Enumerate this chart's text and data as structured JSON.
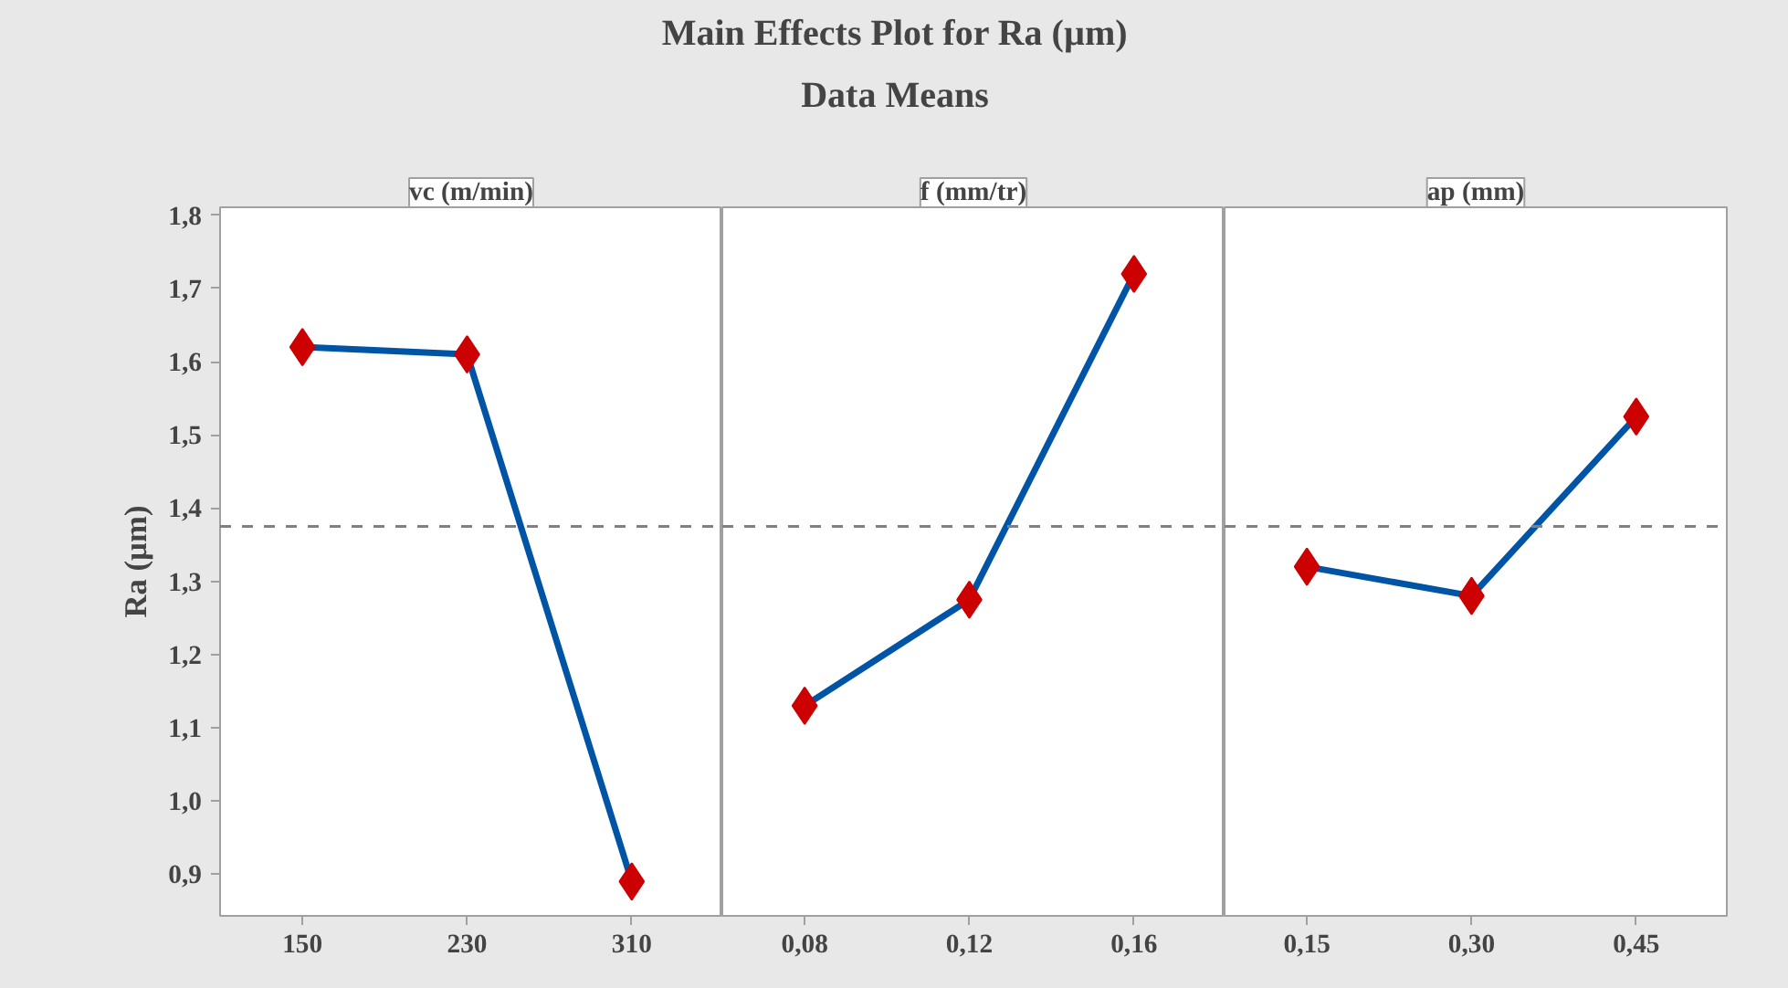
{
  "chart_data": [
    {
      "type": "other",
      "title": "Main Effects Plot for Ra (µm)",
      "subtitle": "Data Means"
    },
    {
      "type": "line",
      "title": "vc (m/min)",
      "ylabel": "Ra (µm)",
      "categories": [
        "150",
        "230",
        "310"
      ],
      "values": [
        1.62,
        1.61,
        0.89
      ],
      "color": "#0054a6",
      "colors": [
        "#cc0000",
        "#cc0000",
        "#cc0000"
      ],
      "marker": "diamond",
      "ylim": [
        0.843,
        1.811
      ],
      "yticks": [
        {
          "value": 0.9,
          "label": "0,9"
        },
        {
          "value": 1.0,
          "label": "1,0"
        },
        {
          "value": 1.1,
          "label": "1,1"
        },
        {
          "value": 1.2,
          "label": "1,2"
        },
        {
          "value": 1.3,
          "label": "1,3"
        },
        {
          "value": 1.4,
          "label": "1,4"
        },
        {
          "value": 1.5,
          "label": "1,5"
        },
        {
          "value": 1.6,
          "label": "1,6"
        },
        {
          "value": 1.7,
          "label": "1,7"
        },
        {
          "value": 1.8,
          "label": "1,8"
        }
      ],
      "ref_lines": [
        {
          "axis": "y",
          "value": 1.375,
          "color": "#808080",
          "line_style": "dashed"
        }
      ]
    },
    {
      "type": "line",
      "title": "f (mm/tr)",
      "categories": [
        "0,08",
        "0,12",
        "0,16"
      ],
      "values": [
        1.13,
        1.275,
        1.72
      ],
      "color": "#0054a6",
      "colors": [
        "#cc0000",
        "#cc0000",
        "#cc0000"
      ],
      "marker": "diamond",
      "ylim": [
        0.843,
        1.811
      ],
      "tick_labels": "x",
      "ref_lines": [
        {
          "axis": "y",
          "value": 1.375,
          "color": "#808080",
          "line_style": "dashed"
        }
      ]
    },
    {
      "type": "line",
      "title": "ap (mm)",
      "categories": [
        "0,15",
        "0,30",
        "0,45"
      ],
      "values": [
        1.32,
        1.28,
        1.525
      ],
      "color": "#0054a6",
      "colors": [
        "#cc0000",
        "#cc0000",
        "#cc0000"
      ],
      "marker": "diamond",
      "ylim": [
        0.843,
        1.811
      ],
      "tick_labels": "x",
      "ref_lines": [
        {
          "axis": "y",
          "value": 1.375,
          "color": "#808080",
          "line_style": "dashed"
        }
      ]
    }
  ]
}
